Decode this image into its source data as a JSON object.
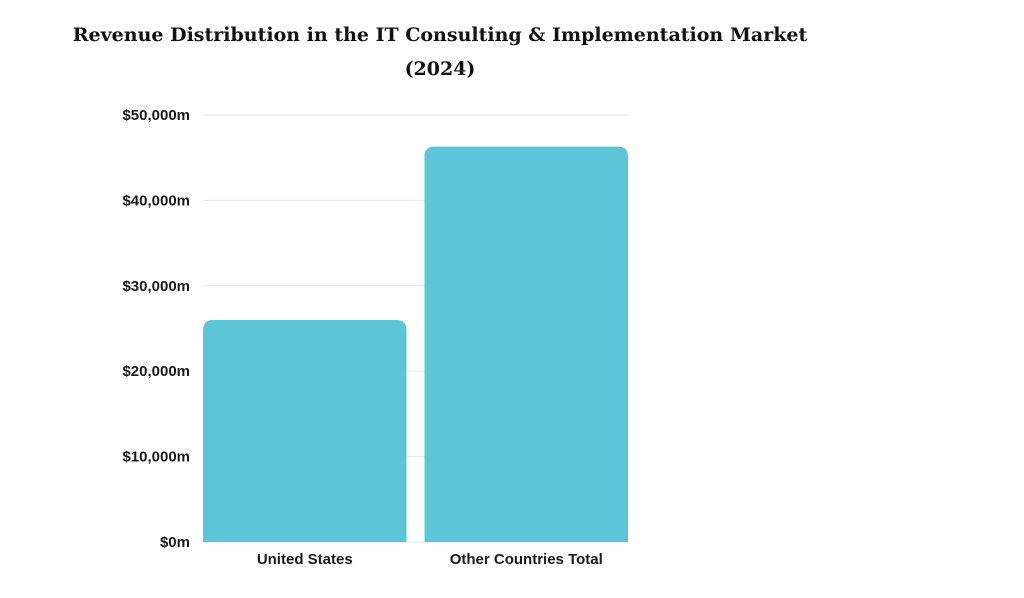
{
  "chart_data": {
    "type": "bar",
    "title": "Revenue Distribution in the IT Consulting & Implementation Market",
    "subtitle": "(2024)",
    "categories": [
      "United States",
      "Other Countries Total"
    ],
    "values": [
      26000,
      46300
    ],
    "ylim": [
      0,
      50000
    ],
    "yticks": [
      0,
      10000,
      20000,
      30000,
      40000,
      50000
    ],
    "ytick_labels": [
      "$0m",
      "$10,000m",
      "$20,000m",
      "$30,000m",
      "$40,000m",
      "$50,000m"
    ],
    "xlabel": "",
    "ylabel": "",
    "grid": true,
    "bar_color": "#5cc6d8",
    "grid_color": "#e6e6e6"
  }
}
